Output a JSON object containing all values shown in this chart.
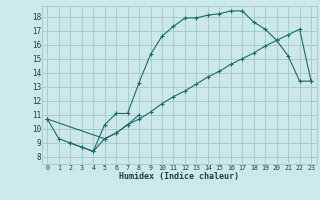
{
  "title": "",
  "xlabel": "Humidex (Indice chaleur)",
  "bg_color": "#cce8e8",
  "grid_color": "#aacccc",
  "line_color": "#1a6b6b",
  "xlim": [
    -0.5,
    23.5
  ],
  "ylim": [
    7.5,
    18.75
  ],
  "xticks": [
    0,
    1,
    2,
    3,
    4,
    5,
    6,
    7,
    8,
    9,
    10,
    11,
    12,
    13,
    14,
    15,
    16,
    17,
    18,
    19,
    20,
    21,
    22,
    23
  ],
  "yticks": [
    8,
    9,
    10,
    11,
    12,
    13,
    14,
    15,
    16,
    17,
    18
  ],
  "line1_x": [
    0,
    1,
    2,
    3,
    4,
    5,
    6,
    7,
    8,
    9,
    10,
    11,
    12,
    13,
    14,
    15,
    16,
    17,
    18,
    19,
    20,
    21,
    22,
    23
  ],
  "line1_y": [
    10.7,
    9.3,
    9.0,
    8.7,
    8.4,
    10.3,
    11.1,
    11.1,
    13.3,
    15.3,
    16.6,
    17.3,
    17.9,
    17.9,
    18.1,
    18.2,
    18.4,
    18.4,
    17.6,
    17.1,
    16.3,
    15.2,
    13.4,
    13.4
  ],
  "line2_x": [
    0,
    5,
    6,
    7,
    8,
    9,
    10,
    11,
    12,
    13,
    14,
    15,
    16,
    17,
    18,
    19,
    20,
    21,
    22,
    23
  ],
  "line2_y": [
    10.7,
    9.3,
    9.7,
    10.3,
    10.7,
    11.2,
    11.8,
    12.3,
    12.7,
    13.2,
    13.7,
    14.1,
    14.6,
    15.0,
    15.4,
    15.9,
    16.3,
    16.7,
    17.1,
    13.4
  ],
  "line3_x": [
    2,
    3,
    4,
    5,
    6,
    7,
    8
  ],
  "line3_y": [
    9.0,
    8.7,
    8.4,
    9.3,
    9.7,
    10.3,
    11.0
  ]
}
